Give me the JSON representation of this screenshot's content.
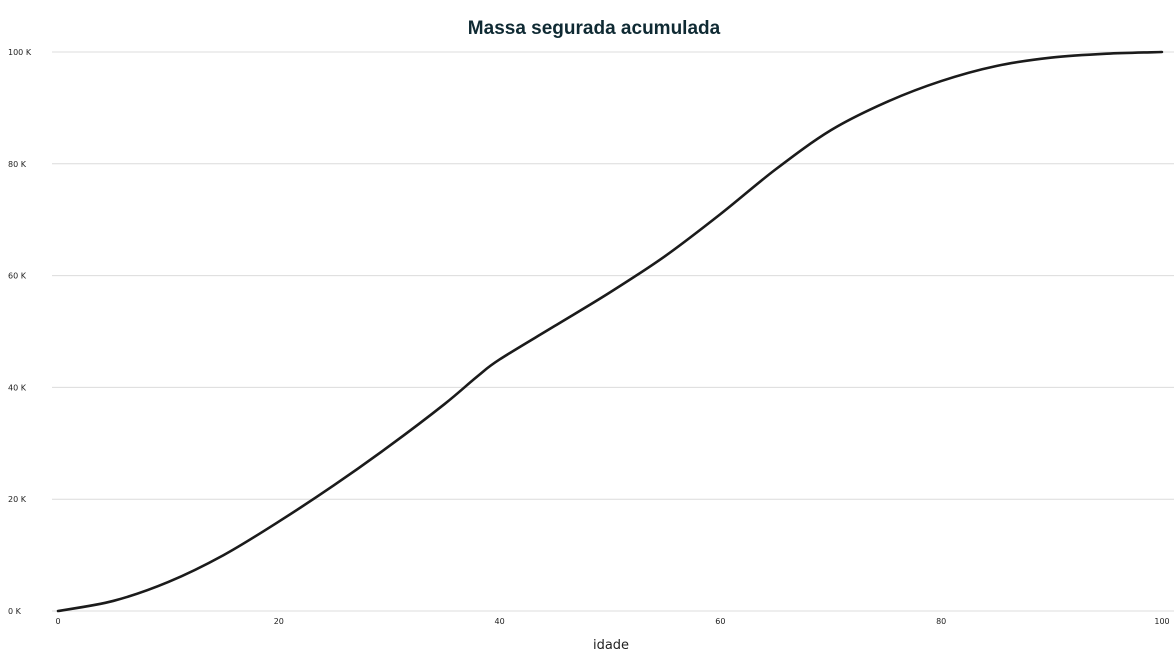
{
  "chart_data": {
    "type": "line",
    "title": "Massa segurada acumulada",
    "xlabel": "idade",
    "ylabel": "",
    "xlim": [
      0,
      100
    ],
    "ylim": [
      0,
      100000
    ],
    "x_ticks": [
      0,
      20,
      40,
      60,
      80,
      100
    ],
    "x_tick_labels": [
      "0",
      "20",
      "40",
      "60",
      "80",
      "100"
    ],
    "y_ticks": [
      0,
      20000,
      40000,
      60000,
      80000,
      100000
    ],
    "y_tick_labels": [
      "0 K",
      "20 K",
      "40 K",
      "60 K",
      "80 K",
      "100 K"
    ],
    "grid": "horizontal",
    "legend": "none",
    "series": [
      {
        "color": "#1b1b1b",
        "x": [
          0,
          5,
          10,
          15,
          20,
          25,
          30,
          35,
          38,
          40,
          45,
          50,
          55,
          60,
          65,
          70,
          75,
          80,
          85,
          90,
          95,
          100
        ],
        "y": [
          0,
          1800,
          5200,
          10000,
          16000,
          22500,
          29500,
          37000,
          42000,
          45000,
          51000,
          57000,
          63500,
          71000,
          79000,
          86000,
          91000,
          94800,
          97500,
          99000,
          99700,
          100000
        ]
      }
    ]
  }
}
